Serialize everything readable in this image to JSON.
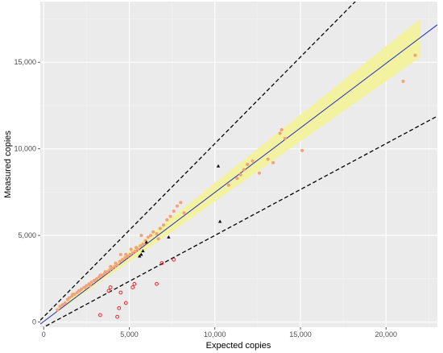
{
  "chart_data": {
    "type": "scatter",
    "xlabel": "Expected copies",
    "ylabel": "Measured copies",
    "xlim": [
      -200,
      23000
    ],
    "ylim": [
      -300,
      18500
    ],
    "x_ticks": [
      0,
      5000,
      10000,
      15000,
      20000
    ],
    "x_tick_labels": [
      "0",
      "5,000",
      "10,000",
      "15,000",
      "20,000"
    ],
    "y_ticks": [
      0,
      5000,
      10000,
      15000
    ],
    "y_tick_labels": [
      "0",
      "5,000",
      "10,000",
      "15,000"
    ],
    "grid": true,
    "legend": "none",
    "colors": {
      "panel": "#ebebeb",
      "grid_major": "#ffffff",
      "grid_minor": "#f4f4f4",
      "band": "#f2f2a0",
      "fit_line": "#2030c0",
      "dashed_line": "#000000",
      "points_in": "#f5a07a",
      "points_out": "#e8262b",
      "triangles": "#111111"
    },
    "fit_line": {
      "slope": 0.745,
      "intercept": 30
    },
    "dashed_upper": {
      "slope": 1.0,
      "intercept": 300
    },
    "dashed_lower": {
      "slope": 0.53,
      "intercept": -300
    },
    "band": {
      "x": [
        700,
        22000
      ],
      "lower": [
        500,
        15300
      ],
      "upper": [
        700,
        17500
      ]
    },
    "series": [
      {
        "marker": "filled-circle",
        "x": [
          800,
          950,
          1100,
          1250,
          1400,
          1500,
          1650,
          1800,
          1950,
          2050,
          2200,
          2350,
          2500,
          2650,
          2800,
          2950,
          3100,
          3250,
          3400,
          3550,
          3700,
          3850,
          4000,
          4150,
          4300,
          4450,
          4600,
          4750,
          4900,
          5050,
          5200,
          5350,
          5500,
          5650,
          5800,
          5950,
          6100,
          6250,
          6400,
          6600,
          6800,
          7000,
          7200,
          7400,
          7600,
          7800,
          8000,
          8200,
          2400,
          3000,
          3600,
          4200,
          4800,
          5400,
          6000,
          6700,
          4500,
          5100,
          5700,
          1700,
          2100,
          2700,
          3300,
          3900,
          10800,
          11300,
          11500,
          11700,
          11900,
          12200,
          12600,
          13100,
          13400,
          13800,
          13900,
          14100,
          15100,
          21000,
          21700
        ],
        "y": [
          700,
          900,
          1000,
          1100,
          1300,
          1400,
          1500,
          1600,
          1700,
          1800,
          1900,
          2000,
          2100,
          2200,
          2300,
          2400,
          2500,
          2600,
          2700,
          2800,
          2900,
          3000,
          3100,
          3200,
          3300,
          3500,
          3600,
          3700,
          3800,
          3900,
          4000,
          4100,
          4200,
          4400,
          4500,
          4700,
          4900,
          5000,
          5200,
          5100,
          5400,
          5600,
          5900,
          6100,
          6400,
          6700,
          6900,
          6300,
          2000,
          2400,
          2900,
          3400,
          3900,
          4300,
          4600,
          4800,
          3900,
          4200,
          5000,
          1600,
          1800,
          2100,
          2700,
          3200,
          7900,
          8300,
          8500,
          8800,
          9100,
          9300,
          8600,
          9400,
          9200,
          10900,
          11100,
          10600,
          9900,
          13900,
          15400
        ]
      },
      {
        "marker": "open-circle",
        "x": [
          3300,
          3800,
          4300,
          4500,
          5200,
          5300,
          6600,
          3900,
          4400,
          4800,
          6900,
          7600
        ],
        "y": [
          400,
          1800,
          300,
          1700,
          2000,
          2200,
          2200,
          2000,
          800,
          1100,
          3400,
          3600
        ]
      },
      {
        "marker": "filled-triangle",
        "x": [
          5600,
          5700,
          5800,
          6000,
          7300,
          10200,
          10300
        ],
        "y": [
          3800,
          3900,
          4100,
          4600,
          4900,
          9000,
          5800
        ]
      }
    ]
  }
}
